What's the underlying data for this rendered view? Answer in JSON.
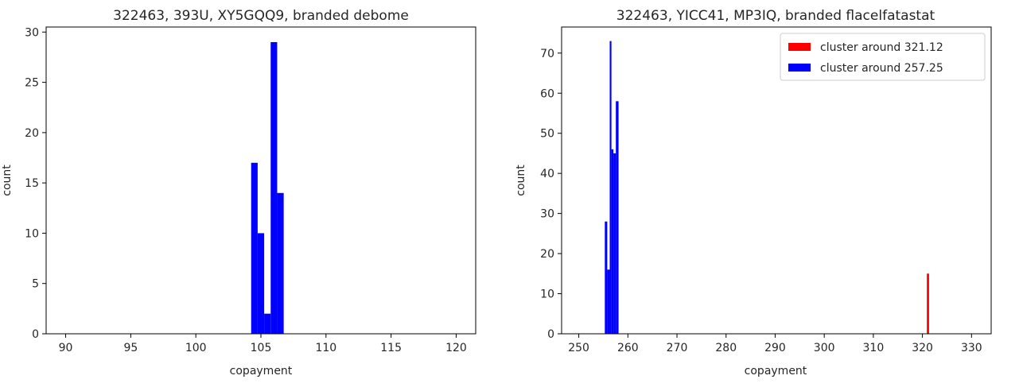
{
  "chart_data": [
    {
      "type": "histogram",
      "title": "322463, 393U, XY5GQQ9, branded debome",
      "xlabel": "copayment",
      "ylabel": "count",
      "xlim": [
        88.5,
        121.5
      ],
      "ylim": [
        0,
        30.5
      ],
      "xticks": [
        90,
        95,
        100,
        105,
        110,
        115,
        120
      ],
      "yticks": [
        0,
        5,
        10,
        15,
        20,
        25,
        30
      ],
      "legend": null,
      "series": [
        {
          "color": "#0000ff",
          "bins": [
            {
              "x0": 104.25,
              "x1": 104.75,
              "count": 17
            },
            {
              "x0": 104.75,
              "x1": 105.25,
              "count": 10
            },
            {
              "x0": 105.25,
              "x1": 105.75,
              "count": 2
            },
            {
              "x0": 105.75,
              "x1": 106.25,
              "count": 29
            },
            {
              "x0": 106.25,
              "x1": 106.75,
              "count": 14
            }
          ]
        }
      ]
    },
    {
      "type": "histogram",
      "title": "322463, YICC41, MP3IQ, branded flacelfatastat",
      "xlabel": "copayment",
      "ylabel": "count",
      "xlim": [
        246.5,
        334
      ],
      "ylim": [
        0,
        76.5
      ],
      "xticks": [
        250,
        260,
        270,
        280,
        290,
        300,
        310,
        320,
        330
      ],
      "yticks": [
        0,
        10,
        20,
        30,
        40,
        50,
        60,
        70
      ],
      "legend": "top-right",
      "series": [
        {
          "name": "cluster around 321.12",
          "color": "#ff0000",
          "bins": [
            {
              "x0": 320.9,
              "x1": 321.35,
              "count": 15
            }
          ]
        },
        {
          "name": "cluster around 257.25",
          "color": "#0000ff",
          "bins": [
            {
              "x0": 255.3,
              "x1": 255.8,
              "count": 28
            },
            {
              "x0": 255.8,
              "x1": 256.3,
              "count": 16
            },
            {
              "x0": 256.3,
              "x1": 256.65,
              "count": 73
            },
            {
              "x0": 256.65,
              "x1": 257.05,
              "count": 46
            },
            {
              "x0": 257.05,
              "x1": 257.55,
              "count": 45
            },
            {
              "x0": 257.55,
              "x1": 258.1,
              "count": 58
            }
          ]
        }
      ]
    }
  ]
}
